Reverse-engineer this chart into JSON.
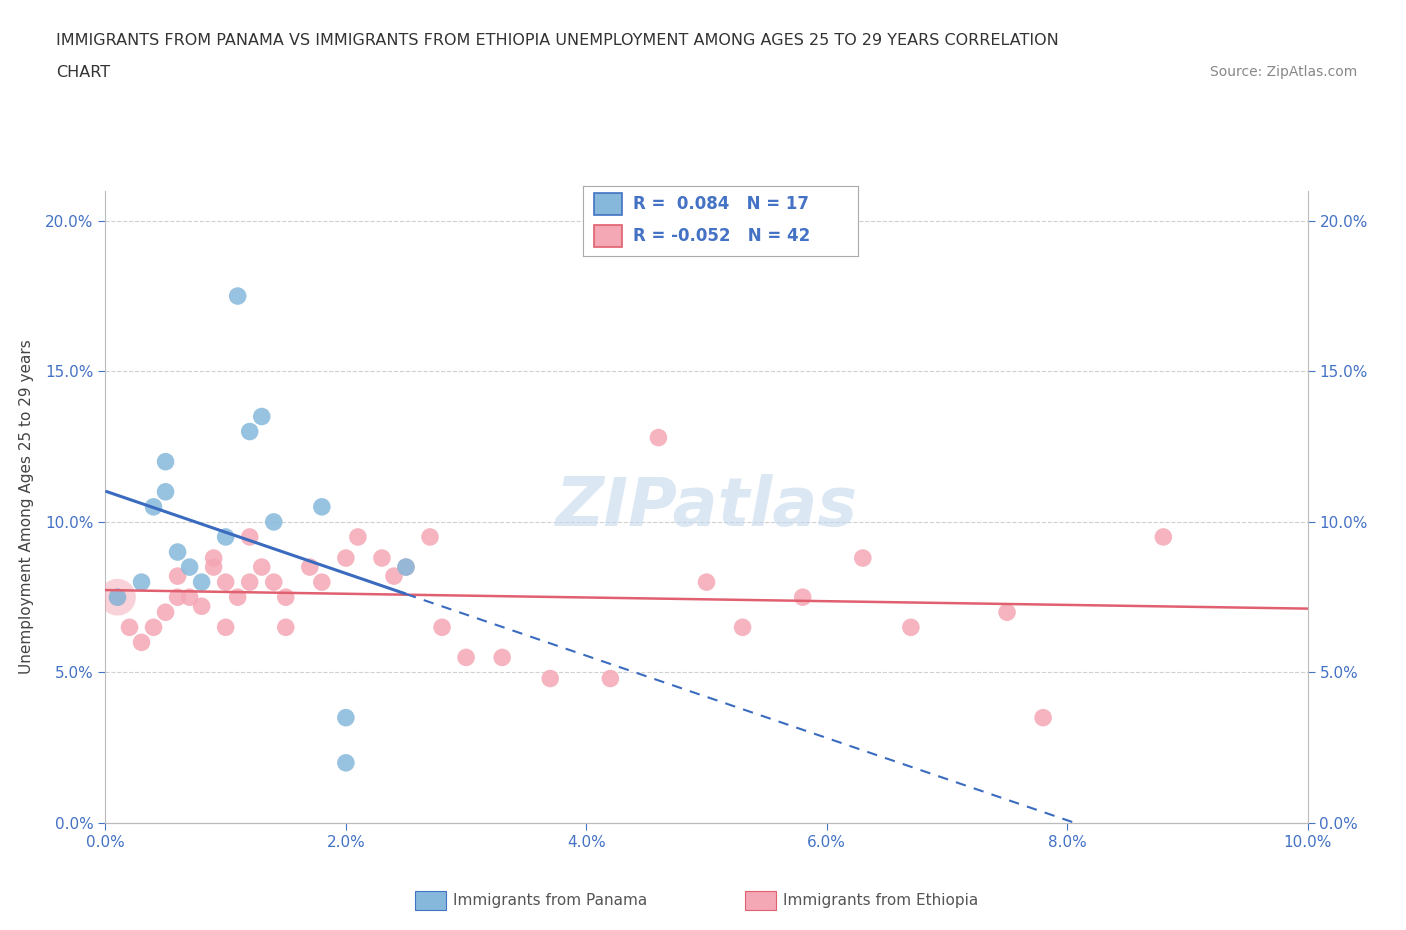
{
  "title_line1": "IMMIGRANTS FROM PANAMA VS IMMIGRANTS FROM ETHIOPIA UNEMPLOYMENT AMONG AGES 25 TO 29 YEARS CORRELATION",
  "title_line2": "CHART",
  "source": "Source: ZipAtlas.com",
  "ylabel": "Unemployment Among Ages 25 to 29 years",
  "xlim": [
    0.0,
    0.1
  ],
  "ylim": [
    0.0,
    0.21
  ],
  "xticks": [
    0.0,
    0.02,
    0.04,
    0.06,
    0.08,
    0.1
  ],
  "yticks": [
    0.0,
    0.05,
    0.1,
    0.15,
    0.2
  ],
  "panama_color": "#85b8db",
  "ethiopia_color": "#f4a7b5",
  "panama_line_color": "#3a6bbf",
  "ethiopia_line_color": "#e06070",
  "watermark": "ZIPatlas",
  "grid_color": "#d0d0d0",
  "panama_x": [
    0.001,
    0.003,
    0.004,
    0.005,
    0.005,
    0.006,
    0.007,
    0.008,
    0.01,
    0.011,
    0.012,
    0.013,
    0.014,
    0.018,
    0.02,
    0.02,
    0.025
  ],
  "panama_y": [
    0.075,
    0.08,
    0.105,
    0.11,
    0.12,
    0.09,
    0.085,
    0.08,
    0.095,
    0.175,
    0.13,
    0.135,
    0.1,
    0.105,
    0.035,
    0.02,
    0.085
  ],
  "ethiopia_x": [
    0.001,
    0.002,
    0.003,
    0.004,
    0.005,
    0.006,
    0.006,
    0.007,
    0.008,
    0.009,
    0.009,
    0.01,
    0.01,
    0.011,
    0.012,
    0.012,
    0.013,
    0.014,
    0.015,
    0.015,
    0.017,
    0.018,
    0.02,
    0.021,
    0.023,
    0.024,
    0.025,
    0.027,
    0.028,
    0.03,
    0.033,
    0.037,
    0.042,
    0.046,
    0.05,
    0.053,
    0.058,
    0.063,
    0.067,
    0.075,
    0.078,
    0.088
  ],
  "ethiopia_y": [
    0.075,
    0.065,
    0.06,
    0.065,
    0.07,
    0.075,
    0.082,
    0.075,
    0.072,
    0.085,
    0.088,
    0.065,
    0.08,
    0.075,
    0.08,
    0.095,
    0.085,
    0.08,
    0.065,
    0.075,
    0.085,
    0.08,
    0.088,
    0.095,
    0.088,
    0.082,
    0.085,
    0.095,
    0.065,
    0.055,
    0.055,
    0.048,
    0.048,
    0.128,
    0.08,
    0.065,
    0.075,
    0.088,
    0.065,
    0.07,
    0.035,
    0.095
  ]
}
